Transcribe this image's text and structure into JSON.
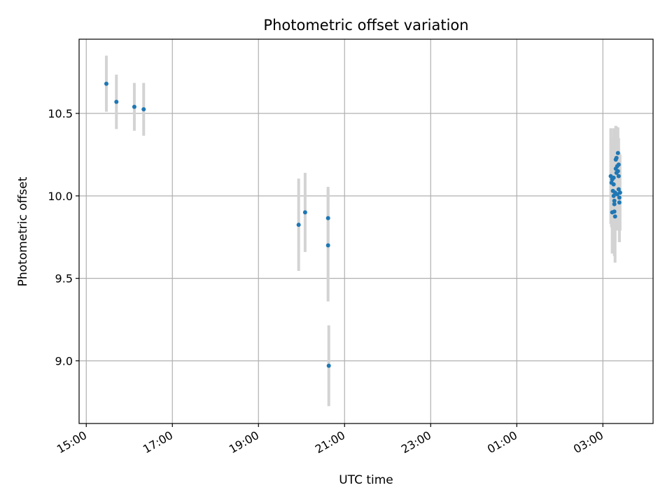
{
  "chart_data": {
    "type": "scatter",
    "title": "Photometric offset variation",
    "xlabel": "UTC time",
    "ylabel": "Photometric offset",
    "grid": true,
    "x_unit": "UTC time (HH:MM), spanning midnight",
    "xlim": [
      "14:50",
      "04:10"
    ],
    "ylim": [
      8.62,
      10.95
    ],
    "x_ticks": [
      "15:00",
      "17:00",
      "19:00",
      "21:00",
      "23:00",
      "01:00",
      "03:00"
    ],
    "y_ticks": [
      "9.0",
      "9.5",
      "10.0",
      "10.5"
    ],
    "colors": {
      "point": "#1f77b4",
      "errorbar": "#d3d3d3",
      "grid": "#b0b0b0"
    },
    "points": [
      {
        "x": "15:28",
        "y": 10.68,
        "err": 0.17
      },
      {
        "x": "15:42",
        "y": 10.57,
        "err": 0.165
      },
      {
        "x": "16:07",
        "y": 10.54,
        "err": 0.145
      },
      {
        "x": "16:20",
        "y": 10.525,
        "err": 0.16
      },
      {
        "x": "19:56",
        "y": 9.825,
        "err": 0.28
      },
      {
        "x": "20:05",
        "y": 9.9,
        "err": 0.24
      },
      {
        "x": "20:37",
        "y": 9.865,
        "err": 0.19
      },
      {
        "x": "20:37",
        "y": 9.7,
        "err": 0.34
      },
      {
        "x": "20:38",
        "y": 8.97,
        "err": 0.245
      },
      {
        "x": "03:11",
        "y": 10.12,
        "err": 0.29
      },
      {
        "x": "03:12",
        "y": 10.08,
        "err": 0.27
      },
      {
        "x": "03:13",
        "y": 10.1,
        "err": 0.26
      },
      {
        "x": "03:13",
        "y": 9.9,
        "err": 0.25
      },
      {
        "x": "03:14",
        "y": 10.03,
        "err": 0.29
      },
      {
        "x": "03:15",
        "y": 10.07,
        "err": 0.28
      },
      {
        "x": "03:15",
        "y": 10.11,
        "err": 0.3
      },
      {
        "x": "03:15",
        "y": 10.0,
        "err": 0.26
      },
      {
        "x": "03:16",
        "y": 9.905,
        "err": 0.27
      },
      {
        "x": "03:16",
        "y": 9.97,
        "err": 0.31
      },
      {
        "x": "03:16",
        "y": 9.95,
        "err": 0.3
      },
      {
        "x": "03:17",
        "y": 9.875,
        "err": 0.28
      },
      {
        "x": "03:17",
        "y": 10.02,
        "err": 0.3
      },
      {
        "x": "03:18",
        "y": 10.22,
        "err": 0.2
      },
      {
        "x": "03:18",
        "y": 10.165,
        "err": 0.26
      },
      {
        "x": "03:19",
        "y": 10.23,
        "err": 0.19
      },
      {
        "x": "03:19",
        "y": 10.14,
        "err": 0.24
      },
      {
        "x": "03:20",
        "y": 10.18,
        "err": 0.23
      },
      {
        "x": "03:20",
        "y": 10.01,
        "err": 0.22
      },
      {
        "x": "03:21",
        "y": 10.26,
        "err": 0.155
      },
      {
        "x": "03:21",
        "y": 10.15,
        "err": 0.19
      },
      {
        "x": "03:22",
        "y": 10.19,
        "err": 0.16
      },
      {
        "x": "03:22",
        "y": 10.12,
        "err": 0.17
      },
      {
        "x": "03:22",
        "y": 10.04,
        "err": 0.22
      },
      {
        "x": "03:23",
        "y": 9.99,
        "err": 0.27
      },
      {
        "x": "03:23",
        "y": 9.96,
        "err": 0.24
      },
      {
        "x": "03:24",
        "y": 10.02,
        "err": 0.23
      }
    ]
  }
}
